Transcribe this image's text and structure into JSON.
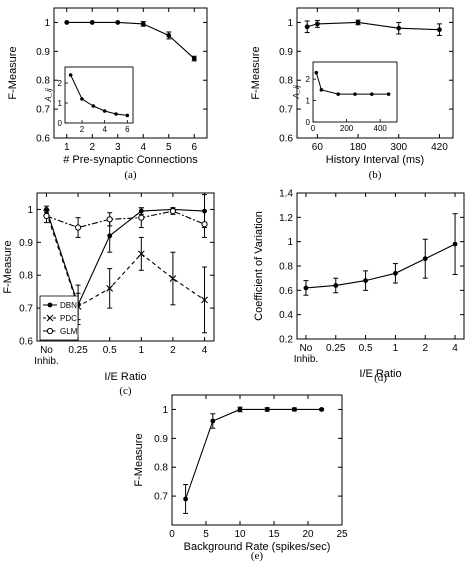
{
  "chart_data": [
    {
      "id": "a",
      "type": "line",
      "caption": "(a)",
      "xlabel": "# Pre-synaptic Connections",
      "ylabel": "F-Measure",
      "xlim": [
        0.5,
        6.5
      ],
      "ylim": [
        0.6,
        1.05
      ],
      "xticks": [
        "1",
        "2",
        "3",
        "4",
        "5",
        "6"
      ],
      "yticks": [
        "0.6",
        "0.7",
        "0.8",
        "0.9",
        "1"
      ],
      "series": [
        {
          "x": [
            1,
            2,
            3,
            4,
            5,
            6
          ],
          "y": [
            1.0,
            1.0,
            1.0,
            0.995,
            0.955,
            0.875
          ],
          "err": [
            0,
            0,
            0,
            0.008,
            0.012,
            0.008
          ]
        }
      ],
      "inset": {
        "ylabel": "A_ij",
        "xlim": [
          0.5,
          6.5
        ],
        "ylim": [
          0,
          2.8
        ],
        "xticks": [
          "2",
          "4",
          "6"
        ],
        "yticks": [
          "0",
          "1",
          "2"
        ],
        "x": [
          1,
          2,
          3,
          4,
          5,
          6
        ],
        "y": [
          2.4,
          1.2,
          0.85,
          0.6,
          0.45,
          0.38
        ]
      }
    },
    {
      "id": "b",
      "type": "line",
      "caption": "(b)",
      "xlabel": "History Interval (ms)",
      "ylabel": "F-Measure",
      "xlim": [
        0,
        460
      ],
      "ylim": [
        0.6,
        1.05
      ],
      "xticks": [
        "60",
        "180",
        "300",
        "420"
      ],
      "yticks": [
        "0.6",
        "0.7",
        "0.8",
        "0.9",
        "1"
      ],
      "series": [
        {
          "x": [
            30,
            60,
            180,
            300,
            420
          ],
          "y": [
            0.985,
            0.995,
            1.0,
            0.98,
            0.975
          ],
          "err": [
            0.02,
            0.012,
            0.008,
            0.02,
            0.02
          ]
        }
      ],
      "inset": {
        "ylabel": "A_ij",
        "xlim": [
          0,
          500
        ],
        "ylim": [
          0,
          2.8
        ],
        "xticks": [
          "0",
          "200",
          "400"
        ],
        "yticks": [
          "0",
          "1",
          "2"
        ],
        "x": [
          20,
          50,
          150,
          250,
          350,
          450
        ],
        "y": [
          2.3,
          1.5,
          1.3,
          1.3,
          1.3,
          1.3
        ]
      }
    },
    {
      "id": "c",
      "type": "line",
      "caption": "(c)",
      "xlabel": "I/E Ratio",
      "ylabel": "F-Measure",
      "xlim": [
        0.7,
        6.3
      ],
      "ylim": [
        0.6,
        1.05
      ],
      "xticks": [
        "No Inhib.",
        "0.25",
        "0.5",
        "1",
        "2",
        "4"
      ],
      "yticks": [
        "0.6",
        "0.7",
        "0.8",
        "0.9",
        "1"
      ],
      "legend": "bottom-left",
      "series": [
        {
          "name": "DBN",
          "style": "solid-dot",
          "x": [
            1,
            2,
            3,
            4,
            5,
            6
          ],
          "y": [
            1.0,
            0.71,
            0.92,
            0.995,
            1.0,
            0.995
          ],
          "err": [
            0.01,
            0.06,
            0.05,
            0.01,
            0.005,
            0.05
          ]
        },
        {
          "name": "PDC",
          "style": "dashed-cross",
          "x": [
            1,
            2,
            3,
            4,
            5,
            6
          ],
          "y": [
            0.99,
            0.705,
            0.76,
            0.865,
            0.79,
            0.725
          ],
          "err": [
            0.01,
            0.04,
            0.06,
            0.05,
            0.08,
            0.1
          ]
        },
        {
          "name": "GLM",
          "style": "dashdot-circle",
          "x": [
            1,
            2,
            3,
            4,
            5,
            6
          ],
          "y": [
            0.98,
            0.945,
            0.97,
            0.975,
            0.995,
            0.955
          ],
          "err": [
            0.02,
            0.03,
            0.02,
            0.03,
            0.01,
            0.04
          ]
        }
      ]
    },
    {
      "id": "d",
      "type": "line",
      "caption": "(d)",
      "xlabel": "I/E Ratio",
      "ylabel": "Coefficient of Variation",
      "xlim": [
        0.7,
        6.3
      ],
      "ylim": [
        0.2,
        1.4
      ],
      "xticks": [
        "No Inhib.",
        "0.25",
        "0.5",
        "1",
        "2",
        "4"
      ],
      "yticks": [
        "0.2",
        "0.4",
        "0.6",
        "0.8",
        "1",
        "1.2",
        "1.4"
      ],
      "series": [
        {
          "x": [
            1,
            2,
            3,
            4,
            5,
            6
          ],
          "y": [
            0.62,
            0.64,
            0.68,
            0.74,
            0.86,
            0.98
          ],
          "err": [
            0.06,
            0.06,
            0.08,
            0.08,
            0.16,
            0.25
          ]
        }
      ]
    },
    {
      "id": "e",
      "type": "line",
      "caption": "(e)",
      "xlabel": "Background Rate (spikes/sec)",
      "ylabel": "F-Measure",
      "xlim": [
        0,
        25
      ],
      "ylim": [
        0.6,
        1.05
      ],
      "xticks": [
        "0",
        "5",
        "10",
        "15",
        "20",
        "25"
      ],
      "yticks": [
        "0.7",
        "0.8",
        "0.9",
        "1"
      ],
      "series": [
        {
          "x": [
            2,
            6,
            10,
            14,
            18,
            22
          ],
          "y": [
            0.69,
            0.96,
            1.0,
            1.0,
            1.0,
            1.0
          ],
          "err": [
            0.05,
            0.025,
            0.008,
            0.006,
            0.005,
            0.003
          ]
        }
      ]
    }
  ]
}
